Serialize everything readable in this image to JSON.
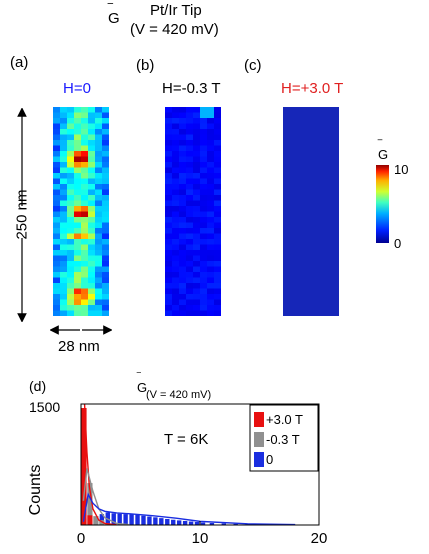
{
  "header": {
    "symbol": "G",
    "tip": "Pt/Ir Tip",
    "voltage": "(V = 420 mV)"
  },
  "panels": [
    {
      "letter": "(a)",
      "field": "H=0",
      "color": "#1a1aff"
    },
    {
      "letter": "(b)",
      "field": "H=-0.3 T",
      "color": "#000000"
    },
    {
      "letter": "(c)",
      "field": "H=+3.0 T",
      "color": "#e02020"
    }
  ],
  "scale": {
    "height_label": "250 nm",
    "width_label": "28 nm"
  },
  "colorbar": {
    "symbol": "G",
    "max_label": "10",
    "min_label": "0",
    "min": 0,
    "max": 10
  },
  "chart_data": {
    "type": "bar",
    "panel_label": "(d)",
    "title_symbol": "G",
    "title_sub": "(V = 420 mV)",
    "annotation": "T = 6K",
    "ylabel": "Counts",
    "ytick_label": "1500",
    "xlim": [
      0,
      20
    ],
    "ylim": [
      0,
      1500
    ],
    "xticks": [
      "0",
      "10",
      "20"
    ],
    "legend_position": "top-right",
    "series": [
      {
        "name": "+3.0 T",
        "color": "#e81010",
        "x": [
          0.25,
          0.75
        ],
        "y": [
          1450,
          120
        ]
      },
      {
        "name": "-0.3 T",
        "color": "#909090",
        "x": [
          0.25,
          0.75,
          1.25,
          1.75,
          2.25
        ],
        "y": [
          80,
          520,
          110,
          60,
          20
        ]
      },
      {
        "name": "0",
        "color": "#1a2ee0",
        "x": [
          1.25,
          1.75,
          2.25,
          2.75,
          3.25,
          3.75,
          4.25,
          4.75,
          5.25,
          5.75,
          6.25,
          6.75,
          7.25,
          7.75,
          8.25,
          8.75,
          9.25,
          9.75,
          10.25,
          11,
          12,
          13,
          14,
          15,
          16,
          17,
          18
        ],
        "y": [
          110,
          140,
          160,
          150,
          145,
          140,
          135,
          130,
          120,
          110,
          100,
          90,
          80,
          70,
          62,
          55,
          48,
          42,
          35,
          30,
          25,
          20,
          16,
          12,
          10,
          8,
          6
        ]
      }
    ],
    "fit_curves": [
      {
        "name": "+3.0 T",
        "color": "#e81010",
        "x": [
          0.3,
          0.5,
          0.7,
          1.0,
          1.5,
          2.0,
          3.0
        ],
        "y": [
          1500,
          900,
          480,
          200,
          60,
          20,
          2
        ]
      },
      {
        "name": "-0.3 T",
        "color": "#909090",
        "x": [
          0.2,
          0.5,
          1.0,
          1.5,
          2.0,
          3.0,
          4.0
        ],
        "y": [
          300,
          700,
          420,
          200,
          90,
          20,
          5
        ]
      },
      {
        "name": "0",
        "color": "#1a2ee0",
        "x": [
          0.2,
          0.6,
          1.0,
          1.5,
          2.0,
          3.0,
          4.0,
          5.0,
          6.0,
          8.0,
          10.0,
          14.0,
          18.0
        ],
        "y": [
          40,
          380,
          270,
          200,
          170,
          150,
          140,
          128,
          115,
          85,
          45,
          15,
          5
        ]
      }
    ]
  }
}
